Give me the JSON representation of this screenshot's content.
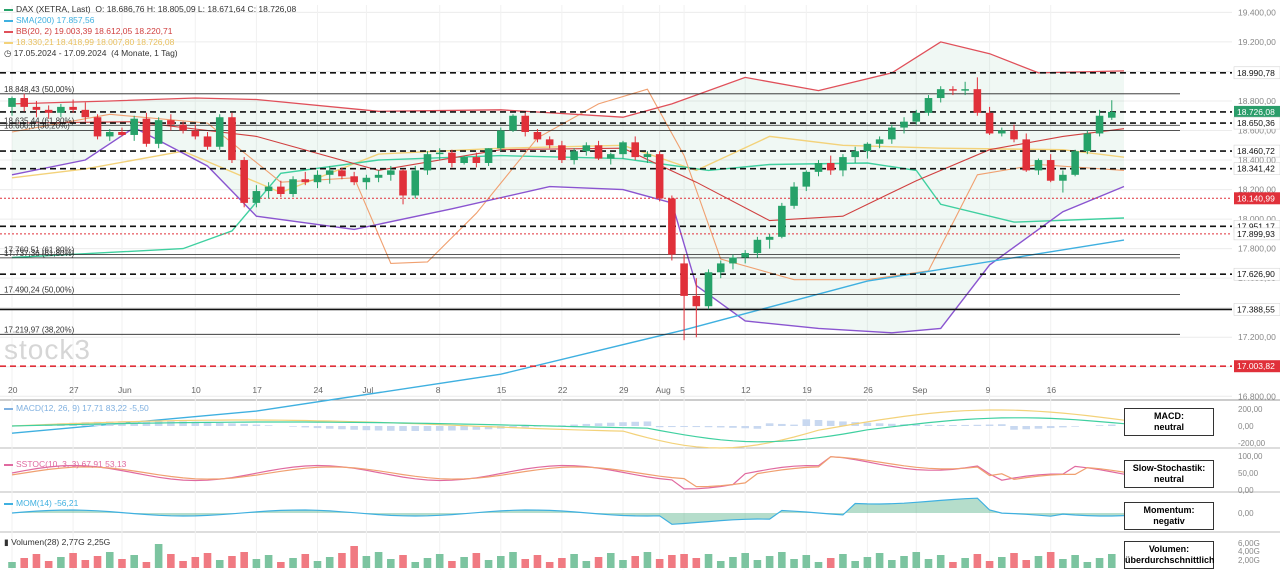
{
  "legend": {
    "title": "DAX (XETRA, Last)",
    "ohlc": "O: 18.686,76  H: 18.805,09  L: 18.671,64  C: 18.726,08",
    "sma": "SMA(200)  17.857,56",
    "bb": "BB(20, 2)  19.003,39  18.612,05  18.220,71",
    "ichimoku": "18.330,21  18.418,99  18.007,80  18.726,08",
    "range": "17.05.2024 - 17.09.2024",
    "range_note": "(4 Monate, 1 Tag)"
  },
  "colors": {
    "up": "#26a269",
    "down": "#e0303a",
    "sma": "#3fb0e0",
    "bb_upper": "#e0505a",
    "bb_mid": "#d04040",
    "bb_lower": "#8a55d0",
    "tenkan": "#f0a070",
    "kijun": "#f3d27a",
    "chikou": "#40d0a0",
    "cloud": "#2a9d6a"
  },
  "watermark": "stock3",
  "indicators": {
    "macd_label": "MACD(12, 26, 9)  17,71  83,22  -5,50",
    "stoch_label": "SSTOC(10, 3, 3)  67,91  53,13",
    "mom_label": "MOM(14)  -56,21",
    "vol_label": "Volumen(28)  2,77G  2,25G",
    "macd_box": [
      "MACD:",
      "neutral"
    ],
    "stoch_box": [
      "Slow-Stochastik:",
      "neutral"
    ],
    "mom_box": [
      "Momentum:",
      "negativ"
    ],
    "vol_box": [
      "Volumen:",
      "überdurchschnittlich"
    ],
    "macd_ticks": [
      "200,00",
      "0,00",
      "-200,00"
    ],
    "stoch_ticks": [
      "100,00",
      "50,00",
      "0,00"
    ],
    "mom_ticks": [
      "0,00"
    ],
    "vol_ticks": [
      "6,00G",
      "4,00G",
      "2,00G"
    ]
  },
  "chart_data": {
    "type": "candlestick",
    "title": "DAX (XETRA, Last)",
    "y_ticks": [
      19400,
      19200,
      19000,
      18800,
      18600,
      18400,
      18200,
      18000,
      17800,
      17600,
      17400,
      17200,
      17000,
      16800
    ],
    "y_tick_labels": [
      "19.400,00",
      "19.200,00",
      "19.000,00",
      "18.800,00",
      "18.600,00",
      "18.400,00",
      "18.200,00",
      "18.000,00",
      "17.800,00",
      "17.600,00",
      "17.400,00",
      "17.200,00",
      "17.000,00",
      "16.800,00"
    ],
    "x_labels": [
      {
        "label": "20",
        "i": 0
      },
      {
        "label": "27",
        "i": 5
      },
      {
        "label": "Jun",
        "i": 9
      },
      {
        "label": "10",
        "i": 15
      },
      {
        "label": "17",
        "i": 20
      },
      {
        "label": "24",
        "i": 25
      },
      {
        "label": "Jul",
        "i": 29
      },
      {
        "label": "8",
        "i": 35
      },
      {
        "label": "15",
        "i": 40
      },
      {
        "label": "22",
        "i": 45
      },
      {
        "label": "29",
        "i": 50
      },
      {
        "label": "Aug",
        "i": 53
      },
      {
        "label": "5",
        "i": 55
      },
      {
        "label": "12",
        "i": 60
      },
      {
        "label": "19",
        "i": 65
      },
      {
        "label": "26",
        "i": 70
      },
      {
        "label": "Sep",
        "i": 74
      },
      {
        "label": "9",
        "i": 80
      },
      {
        "label": "16",
        "i": 85
      }
    ],
    "candles": [
      [
        18760,
        18830,
        18700,
        18820
      ],
      [
        18820,
        18850,
        18730,
        18760
      ],
      [
        18760,
        18800,
        18690,
        18740
      ],
      [
        18740,
        18770,
        18680,
        18720
      ],
      [
        18720,
        18780,
        18690,
        18760
      ],
      [
        18760,
        18810,
        18720,
        18740
      ],
      [
        18740,
        18790,
        18660,
        18690
      ],
      [
        18690,
        18710,
        18540,
        18560
      ],
      [
        18560,
        18610,
        18530,
        18590
      ],
      [
        18590,
        18620,
        18560,
        18570
      ],
      [
        18570,
        18700,
        18530,
        18680
      ],
      [
        18680,
        18720,
        18490,
        18510
      ],
      [
        18510,
        18690,
        18480,
        18670
      ],
      [
        18670,
        18710,
        18600,
        18640
      ],
      [
        18640,
        18660,
        18580,
        18600
      ],
      [
        18600,
        18640,
        18540,
        18560
      ],
      [
        18560,
        18590,
        18470,
        18490
      ],
      [
        18490,
        18710,
        18470,
        18690
      ],
      [
        18690,
        18720,
        18380,
        18400
      ],
      [
        18400,
        18420,
        18080,
        18110
      ],
      [
        18110,
        18230,
        18080,
        18190
      ],
      [
        18190,
        18250,
        18140,
        18220
      ],
      [
        18220,
        18260,
        18150,
        18170
      ],
      [
        18170,
        18290,
        18150,
        18270
      ],
      [
        18270,
        18320,
        18230,
        18250
      ],
      [
        18250,
        18330,
        18210,
        18300
      ],
      [
        18300,
        18360,
        18240,
        18330
      ],
      [
        18330,
        18350,
        18270,
        18290
      ],
      [
        18290,
        18320,
        18230,
        18250
      ],
      [
        18250,
        18300,
        18200,
        18280
      ],
      [
        18280,
        18330,
        18250,
        18300
      ],
      [
        18300,
        18360,
        18260,
        18330
      ],
      [
        18330,
        18340,
        18100,
        18160
      ],
      [
        18160,
        18360,
        18140,
        18330
      ],
      [
        18330,
        18460,
        18300,
        18440
      ],
      [
        18440,
        18480,
        18400,
        18450
      ],
      [
        18450,
        18470,
        18350,
        18380
      ],
      [
        18380,
        18430,
        18370,
        18420
      ],
      [
        18420,
        18450,
        18350,
        18380
      ],
      [
        18380,
        18480,
        18360,
        18480
      ],
      [
        18480,
        18620,
        18460,
        18600
      ],
      [
        18600,
        18710,
        18590,
        18700
      ],
      [
        18700,
        18720,
        18560,
        18590
      ],
      [
        18590,
        18610,
        18520,
        18540
      ],
      [
        18540,
        18560,
        18480,
        18500
      ],
      [
        18500,
        18530,
        18380,
        18400
      ],
      [
        18400,
        18480,
        18370,
        18460
      ],
      [
        18460,
        18520,
        18430,
        18500
      ],
      [
        18500,
        18530,
        18400,
        18410
      ],
      [
        18410,
        18450,
        18370,
        18440
      ],
      [
        18440,
        18530,
        18410,
        18520
      ],
      [
        18520,
        18560,
        18400,
        18420
      ],
      [
        18420,
        18460,
        18380,
        18440
      ],
      [
        18440,
        18460,
        18120,
        18140
      ],
      [
        18140,
        18160,
        17720,
        17760
      ],
      [
        17700,
        17760,
        17180,
        17480
      ],
      [
        17480,
        17600,
        17200,
        17410
      ],
      [
        17410,
        17660,
        17390,
        17640
      ],
      [
        17640,
        17720,
        17600,
        17700
      ],
      [
        17700,
        17760,
        17660,
        17740
      ],
      [
        17740,
        17790,
        17700,
        17770
      ],
      [
        17770,
        17880,
        17740,
        17860
      ],
      [
        17860,
        17900,
        17800,
        17880
      ],
      [
        17880,
        18110,
        17870,
        18090
      ],
      [
        18090,
        18250,
        18070,
        18220
      ],
      [
        18220,
        18330,
        18190,
        18320
      ],
      [
        18320,
        18400,
        18290,
        18380
      ],
      [
        18380,
        18430,
        18300,
        18330
      ],
      [
        18330,
        18440,
        18290,
        18420
      ],
      [
        18420,
        18490,
        18380,
        18460
      ],
      [
        18460,
        18520,
        18410,
        18510
      ],
      [
        18510,
        18560,
        18480,
        18540
      ],
      [
        18540,
        18640,
        18510,
        18620
      ],
      [
        18620,
        18690,
        18580,
        18660
      ],
      [
        18660,
        18740,
        18640,
        18720
      ],
      [
        18720,
        18840,
        18700,
        18820
      ],
      [
        18820,
        18900,
        18790,
        18880
      ],
      [
        18880,
        18900,
        18840,
        18870
      ],
      [
        18870,
        18930,
        18840,
        18880
      ],
      [
        18880,
        18960,
        18700,
        18720
      ],
      [
        18720,
        18760,
        18570,
        18580
      ],
      [
        18580,
        18620,
        18560,
        18600
      ],
      [
        18600,
        18640,
        18520,
        18540
      ],
      [
        18540,
        18580,
        18320,
        18330
      ],
      [
        18330,
        18410,
        18300,
        18400
      ],
      [
        18400,
        18440,
        18250,
        18260
      ],
      [
        18260,
        18330,
        18180,
        18300
      ],
      [
        18300,
        18470,
        18290,
        18460
      ],
      [
        18460,
        18600,
        18440,
        18580
      ],
      [
        18580,
        18740,
        18560,
        18700
      ],
      [
        18686.76,
        18805.09,
        18671.64,
        18726.08
      ]
    ],
    "horizontal_levels": [
      {
        "value": 18990.78,
        "label": "18.990,78",
        "style": "dashed",
        "color": "#111111"
      },
      {
        "value": 18726.08,
        "label": "18.726,08",
        "style": "dashed",
        "color": "#111111",
        "tag": "last"
      },
      {
        "value": 18650.36,
        "label": "18.650,36",
        "style": "dashed",
        "color": "#111111"
      },
      {
        "value": 18460.72,
        "label": "18.460,72",
        "style": "dashed",
        "color": "#111111"
      },
      {
        "value": 18341.42,
        "label": "18.341,42",
        "style": "dashed",
        "color": "#111111"
      },
      {
        "value": 18140.99,
        "label": "18.140,99",
        "style": "dotted",
        "color": "#e0303a",
        "tag": "red"
      },
      {
        "value": 17951.17,
        "label": "17.951,17",
        "style": "dashed",
        "color": "#111111"
      },
      {
        "value": 17899.93,
        "label": "17.899,93",
        "style": "dotted",
        "color": "#e0303a"
      },
      {
        "value": 17626.9,
        "label": "17.626,90",
        "style": "dashed",
        "color": "#111111"
      },
      {
        "value": 17388.55,
        "label": "17.388,55",
        "style": "solid",
        "color": "#111111"
      },
      {
        "value": 17003.82,
        "label": "17.003,82",
        "style": "dashed",
        "color": "#e0303a",
        "tag": "red"
      }
    ],
    "fib_levels": [
      {
        "value": 18848.43,
        "label": "18.848,43 (50,00%)"
      },
      {
        "value": 18635.44,
        "label": "18.635,44 (61,80%)"
      },
      {
        "value": 18600.0,
        "label": "18.600,0 (38,20%)"
      },
      {
        "value": 17760.51,
        "label": "17.760,51 (61,80%)"
      },
      {
        "value": 17737.36,
        "label": "17.737,36 (61,80%)"
      },
      {
        "value": 17490.24,
        "label": "17.490,24 (50,00%)"
      },
      {
        "value": 17219.97,
        "label": "17.219,97 (38,20%)"
      }
    ],
    "sma200": [
      [
        0,
        16550
      ],
      [
        20,
        16700
      ],
      [
        40,
        16950
      ],
      [
        55,
        17250
      ],
      [
        70,
        17580
      ],
      [
        91,
        17857.56
      ]
    ],
    "bb_upper": [
      [
        0,
        18780
      ],
      [
        8,
        18800
      ],
      [
        15,
        18820
      ],
      [
        20,
        18810
      ],
      [
        30,
        18730
      ],
      [
        40,
        18740
      ],
      [
        50,
        18690
      ],
      [
        54,
        18780
      ],
      [
        60,
        18960
      ],
      [
        66,
        18870
      ],
      [
        72,
        18990
      ],
      [
        76,
        19200
      ],
      [
        80,
        19120
      ],
      [
        84,
        18990
      ],
      [
        91,
        19003.39
      ]
    ],
    "bb_mid": [
      [
        0,
        18650
      ],
      [
        10,
        18660
      ],
      [
        20,
        18560
      ],
      [
        30,
        18330
      ],
      [
        40,
        18470
      ],
      [
        50,
        18480
      ],
      [
        56,
        18250
      ],
      [
        62,
        17990
      ],
      [
        68,
        18020
      ],
      [
        74,
        18260
      ],
      [
        80,
        18470
      ],
      [
        86,
        18560
      ],
      [
        91,
        18612.05
      ]
    ],
    "bb_lower": [
      [
        0,
        18300
      ],
      [
        6,
        18400
      ],
      [
        10,
        18620
      ],
      [
        16,
        18360
      ],
      [
        20,
        18020
      ],
      [
        28,
        17930
      ],
      [
        36,
        18070
      ],
      [
        44,
        18220
      ],
      [
        50,
        18200
      ],
      [
        54,
        18110
      ],
      [
        56,
        17550
      ],
      [
        60,
        17310
      ],
      [
        66,
        17260
      ],
      [
        72,
        17230
      ],
      [
        76,
        17260
      ],
      [
        80,
        17690
      ],
      [
        86,
        18050
      ],
      [
        91,
        18220.71
      ]
    ],
    "tenkan": [
      [
        0,
        18590
      ],
      [
        8,
        18710
      ],
      [
        16,
        18650
      ],
      [
        22,
        18250
      ],
      [
        28,
        18280
      ],
      [
        31,
        17700
      ],
      [
        34,
        17710
      ],
      [
        38,
        18040
      ],
      [
        43,
        18550
      ],
      [
        48,
        18780
      ],
      [
        52,
        18880
      ],
      [
        55,
        18430
      ],
      [
        58,
        17730
      ],
      [
        64,
        17590
      ],
      [
        70,
        17590
      ],
      [
        75,
        17650
      ],
      [
        79,
        18300
      ],
      [
        84,
        18370
      ],
      [
        91,
        18330.21
      ]
    ],
    "kijun": [
      [
        0,
        18280
      ],
      [
        6,
        18340
      ],
      [
        14,
        18460
      ],
      [
        22,
        18180
      ],
      [
        30,
        18440
      ],
      [
        40,
        18480
      ],
      [
        50,
        18500
      ],
      [
        56,
        18330
      ],
      [
        62,
        18560
      ],
      [
        68,
        18500
      ],
      [
        76,
        18480
      ],
      [
        86,
        18470
      ],
      [
        91,
        18418.99
      ]
    ],
    "chikou": [
      [
        0,
        17740
      ],
      [
        14,
        17800
      ],
      [
        18,
        17920
      ],
      [
        22,
        18310
      ],
      [
        30,
        18400
      ],
      [
        40,
        18430
      ],
      [
        50,
        18410
      ],
      [
        57,
        18330
      ],
      [
        62,
        18370
      ],
      [
        70,
        18380
      ],
      [
        74,
        18330
      ],
      [
        76,
        18100
      ],
      [
        82,
        17980
      ],
      [
        91,
        18007.8
      ]
    ]
  }
}
